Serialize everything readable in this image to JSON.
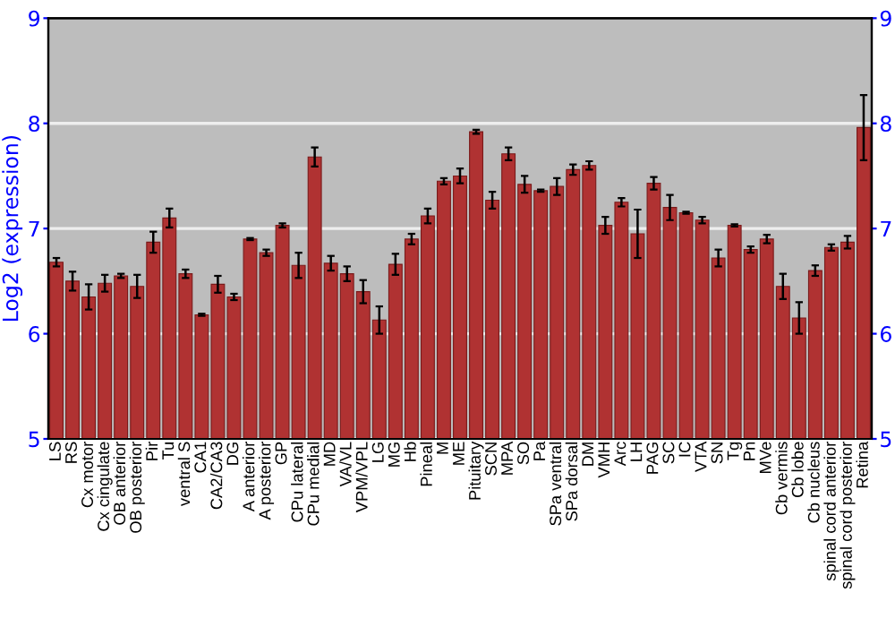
{
  "chart_data": {
    "type": "bar",
    "ylabel": "Log2 (expression)",
    "categories": [
      "LS",
      "RS",
      "Cx motor",
      "Cx cingulate",
      "OB anterior",
      "OB posterior",
      "Pir",
      "Tu",
      "ventral S",
      "CA1",
      "CA2/CA3",
      "DG",
      "A anterior",
      "A posterior",
      "GP",
      "CPu lateral",
      "CPu medial",
      "MD",
      "VA/VL",
      "VPM/VPL",
      "LG",
      "MG",
      "Hb",
      "Pineal",
      "M",
      "ME",
      "Pituitary",
      "SCN",
      "MPA",
      "SO",
      "Pa",
      "SPa ventral",
      "SPa dorsal",
      "DM",
      "VMH",
      "Arc",
      "LH",
      "PAG",
      "SC",
      "IC",
      "VTA",
      "SN",
      "Tg",
      "Pn",
      "MVe",
      "Cb vermis",
      "Cb lobe",
      "Cb nucleus",
      "spinal cord anterior",
      "spinal cord posterior",
      "Retina"
    ],
    "values": [
      6.68,
      6.5,
      6.35,
      6.48,
      6.55,
      6.45,
      6.87,
      7.1,
      6.57,
      6.18,
      6.47,
      6.35,
      6.9,
      6.77,
      7.03,
      6.65,
      7.68,
      6.67,
      6.57,
      6.4,
      6.13,
      6.66,
      6.9,
      7.12,
      7.45,
      7.5,
      7.92,
      7.27,
      7.71,
      7.42,
      7.36,
      7.4,
      7.56,
      7.6,
      7.03,
      7.25,
      6.95,
      7.43,
      7.2,
      7.15,
      7.08,
      6.72,
      7.03,
      6.8,
      6.9,
      6.45,
      6.15,
      6.6,
      6.82,
      6.87,
      7.96
    ],
    "errors": [
      0.04,
      0.09,
      0.12,
      0.08,
      0.02,
      0.11,
      0.1,
      0.09,
      0.04,
      0.01,
      0.08,
      0.03,
      0.01,
      0.03,
      0.02,
      0.12,
      0.09,
      0.07,
      0.07,
      0.11,
      0.13,
      0.1,
      0.05,
      0.07,
      0.03,
      0.07,
      0.02,
      0.08,
      0.06,
      0.08,
      0.01,
      0.08,
      0.05,
      0.04,
      0.08,
      0.04,
      0.23,
      0.06,
      0.12,
      0.01,
      0.03,
      0.08,
      0.01,
      0.03,
      0.04,
      0.12,
      0.15,
      0.05,
      0.03,
      0.06,
      0.31
    ],
    "color": "#b03232",
    "ylim": [
      5,
      9
    ],
    "yticks": [
      5,
      6,
      7,
      8,
      9
    ],
    "y2lim": [
      5,
      9
    ],
    "y2ticks": [
      5,
      6,
      7,
      8,
      9
    ],
    "grid": "y"
  }
}
